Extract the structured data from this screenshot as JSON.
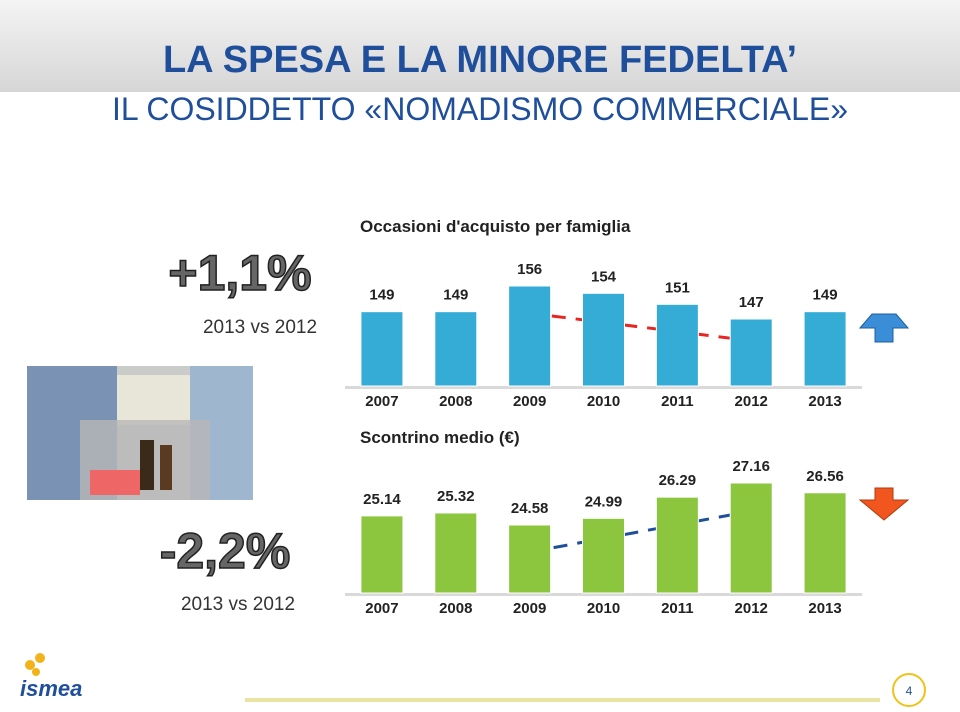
{
  "slide": {
    "title": "LA SPESA E LA MINORE FEDELTA’",
    "subtitle": "IL COSIDDETTO «NOMADISMO COMMERCIALE»",
    "stats": [
      {
        "change": "+1,1%",
        "period": "2013 vs 2012"
      },
      {
        "change": "-2,2%",
        "period": "2013 vs 2012"
      }
    ],
    "logo": "ismea",
    "page": "4"
  },
  "chart_data": [
    {
      "type": "bar",
      "title": "Occasioni d'acquisto per famiglia",
      "color": "#35acd6",
      "categories": [
        "2007",
        "2008",
        "2009",
        "2010",
        "2011",
        "2012",
        "2013"
      ],
      "values": [
        149,
        149,
        156,
        154,
        151,
        147,
        149
      ]
    },
    {
      "type": "bar",
      "title": "Scontrino medio (€)",
      "color": "#8cc63e",
      "categories": [
        "2007",
        "2008",
        "2009",
        "2010",
        "2011",
        "2012",
        "2013"
      ],
      "values": [
        25.14,
        25.32,
        24.58,
        24.99,
        26.29,
        27.16,
        26.56
      ]
    }
  ]
}
